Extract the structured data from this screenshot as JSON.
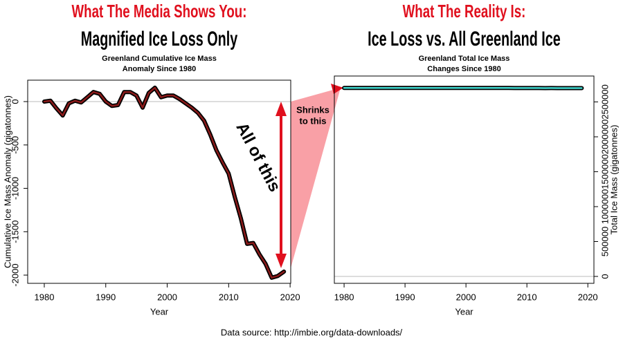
{
  "chart_data": [
    {
      "type": "line",
      "kicker": "What The Media Shows You:",
      "headline": "Magnified Ice Loss Only",
      "title": [
        "Greenland Cumulative Ice Mass",
        "Anomaly Since 1980"
      ],
      "xlabel": "Year",
      "ylabel": "Cumulative Ice Mass Anomaly (gigatonnes)",
      "yaxis_side": "left",
      "x": [
        1980,
        1981,
        1982,
        1983,
        1984,
        1985,
        1986,
        1987,
        1988,
        1989,
        1990,
        1991,
        1992,
        1993,
        1994,
        1995,
        1996,
        1997,
        1998,
        1999,
        2000,
        2001,
        2002,
        2003,
        2004,
        2005,
        2006,
        2007,
        2008,
        2009,
        2010,
        2011,
        2012,
        2013,
        2014,
        2015,
        2016,
        2017,
        2018,
        2019
      ],
      "series": [
        {
          "name": "Cumulative Ice Mass Anomaly",
          "color": "#8b1a1a",
          "values": [
            0,
            10,
            -80,
            -160,
            -20,
            10,
            -10,
            50,
            110,
            90,
            0,
            -50,
            -40,
            110,
            110,
            70,
            -70,
            100,
            160,
            50,
            70,
            70,
            30,
            -20,
            -70,
            -130,
            -220,
            -380,
            -560,
            -700,
            -830,
            -1100,
            -1350,
            -1640,
            -1630,
            -1760,
            -1870,
            -2030,
            -2010,
            -1960
          ]
        }
      ],
      "xlim": [
        1977.3,
        2020.1
      ],
      "xticks": [
        1980,
        1990,
        2000,
        2010,
        2020
      ],
      "ylim": [
        -2095,
        247
      ],
      "yticks": [
        -2000,
        -1500,
        -1000,
        -500,
        0
      ],
      "hline": 0
    },
    {
      "type": "line",
      "kicker": "What The Reality Is:",
      "headline": "Ice Loss vs. All Greenland Ice",
      "title": [
        "Greenland Total Ice Mass",
        "Changes Since 1980"
      ],
      "xlabel": "Year",
      "ylabel": "Total Ice Mass (gigatonnes)",
      "yaxis_side": "right",
      "x": [
        1980,
        1981,
        1982,
        1983,
        1984,
        1985,
        1986,
        1987,
        1988,
        1989,
        1990,
        1991,
        1992,
        1993,
        1994,
        1995,
        1996,
        1997,
        1998,
        1999,
        2000,
        2001,
        2002,
        2003,
        2004,
        2005,
        2006,
        2007,
        2008,
        2009,
        2010,
        2011,
        2012,
        2013,
        2014,
        2015,
        2016,
        2017,
        2018,
        2019
      ],
      "series": [
        {
          "name": "Total Ice Mass",
          "color": "#40d8d0",
          "values": [
            2700000,
            2700010,
            2699920,
            2699840,
            2699980,
            2700010,
            2699990,
            2700050,
            2700110,
            2700090,
            2700000,
            2699950,
            2699960,
            2700110,
            2700110,
            2700070,
            2699930,
            2700100,
            2700160,
            2700050,
            2700070,
            2700070,
            2700030,
            2699980,
            2699930,
            2699870,
            2699780,
            2699620,
            2699440,
            2699300,
            2699170,
            2698900,
            2698650,
            2698360,
            2698370,
            2698240,
            2698130,
            2697970,
            2697990,
            2698040
          ]
        }
      ],
      "xlim": [
        1978.4,
        2021.0
      ],
      "xticks": [
        1980,
        1990,
        2000,
        2010,
        2020
      ],
      "ylim": [
        -99000,
        2871000
      ],
      "yticks": [
        0,
        500000,
        1000000,
        1500000,
        2000000,
        2500000
      ],
      "hline": 0
    }
  ],
  "annotations": {
    "all_of_this": "All of this",
    "shrinks": [
      "Shrinks",
      "to this"
    ]
  },
  "source": "Data source: http://imbie.org/data-downloads/"
}
